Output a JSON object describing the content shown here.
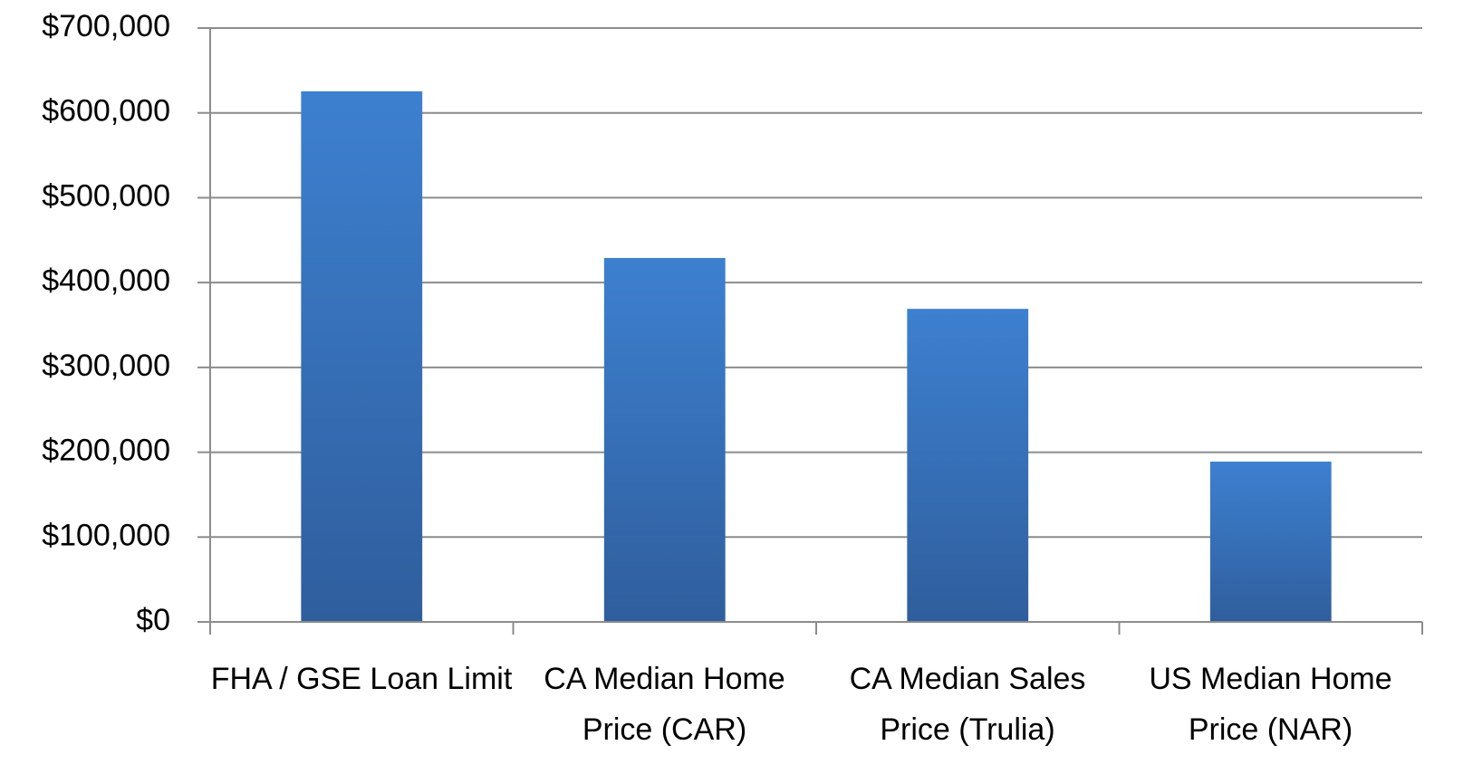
{
  "chart_data": {
    "type": "bar",
    "categories": [
      "FHA / GSE Loan Limit",
      "CA Median Home Price (CAR)",
      "CA Median Sales Price (Trulia)",
      "US Median Home Price (NAR)"
    ],
    "values": [
      625500,
      429000,
      369000,
      189000
    ],
    "color": "#3a78c6",
    "ylim": [
      0,
      700000
    ],
    "yticks": [
      {
        "value": 0,
        "label": "$0"
      },
      {
        "value": 100000,
        "label": "$100,000"
      },
      {
        "value": 200000,
        "label": "$200,000"
      },
      {
        "value": 300000,
        "label": "$300,000"
      },
      {
        "value": 400000,
        "label": "$400,000"
      },
      {
        "value": 500000,
        "label": "$500,000"
      },
      {
        "value": 600000,
        "label": "$600,000"
      },
      {
        "value": 700000,
        "label": "$700,000"
      }
    ],
    "grid": true
  }
}
